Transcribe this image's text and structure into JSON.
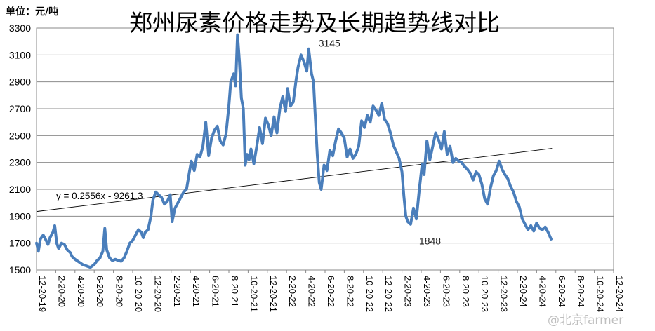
{
  "chart_data": {
    "type": "line",
    "title": "郑州尿素价格走势及长期趋势线对比",
    "unit_label": "单位：元/吨",
    "ylim": [
      1500,
      3300
    ],
    "yticks": [
      1500,
      1700,
      1900,
      2100,
      2300,
      2500,
      2700,
      2900,
      3100,
      3300
    ],
    "grid": true,
    "legend": "none",
    "x_tick_labels": [
      "12-20-19",
      "2-20-20",
      "4-20-20",
      "6-20-20",
      "8-20-20",
      "10-20-20",
      "12-20-20",
      "2-20-21",
      "4-20-21",
      "6-20-21",
      "8-20-21",
      "10-20-21",
      "12-20-21",
      "2-20-22",
      "4-20-22",
      "6-20-22",
      "8-20-22",
      "10-20-22",
      "12-20-22",
      "2-20-23",
      "4-20-23",
      "6-20-23",
      "8-20-23",
      "10-20-23",
      "12-20-23",
      "2-20-24",
      "4-20-24",
      "6-20-24",
      "8-20-24",
      "10-20-24",
      "12-20-24"
    ],
    "series": [
      {
        "color": "#4a7ebb",
        "points": [
          [
            0,
            1700
          ],
          [
            0.1,
            1640
          ],
          [
            0.2,
            1730
          ],
          [
            0.35,
            1760
          ],
          [
            0.5,
            1720
          ],
          [
            0.6,
            1690
          ],
          [
            0.7,
            1740
          ],
          [
            0.85,
            1780
          ],
          [
            0.95,
            1830
          ],
          [
            1.05,
            1700
          ],
          [
            1.15,
            1660
          ],
          [
            1.3,
            1700
          ],
          [
            1.45,
            1690
          ],
          [
            1.6,
            1650
          ],
          [
            1.75,
            1630
          ],
          [
            1.85,
            1600
          ],
          [
            2.0,
            1580
          ],
          [
            2.2,
            1560
          ],
          [
            2.4,
            1540
          ],
          [
            2.6,
            1530
          ],
          [
            2.8,
            1520
          ],
          [
            3.0,
            1540
          ],
          [
            3.15,
            1570
          ],
          [
            3.3,
            1590
          ],
          [
            3.45,
            1640
          ],
          [
            3.55,
            1810
          ],
          [
            3.65,
            1650
          ],
          [
            3.8,
            1590
          ],
          [
            3.95,
            1570
          ],
          [
            4.1,
            1580
          ],
          [
            4.25,
            1570
          ],
          [
            4.4,
            1565
          ],
          [
            4.55,
            1590
          ],
          [
            4.7,
            1640
          ],
          [
            4.85,
            1700
          ],
          [
            5.0,
            1720
          ],
          [
            5.15,
            1760
          ],
          [
            5.3,
            1800
          ],
          [
            5.45,
            1780
          ],
          [
            5.55,
            1740
          ],
          [
            5.65,
            1780
          ],
          [
            5.8,
            1800
          ],
          [
            5.95,
            1900
          ],
          [
            6.05,
            2020
          ],
          [
            6.2,
            2080
          ],
          [
            6.35,
            2060
          ],
          [
            6.5,
            2040
          ],
          [
            6.65,
            1990
          ],
          [
            6.8,
            2010
          ],
          [
            6.95,
            2060
          ],
          [
            7.05,
            1860
          ],
          [
            7.2,
            1960
          ],
          [
            7.35,
            2000
          ],
          [
            7.5,
            2040
          ],
          [
            7.65,
            2080
          ],
          [
            7.8,
            2100
          ],
          [
            7.95,
            2230
          ],
          [
            8.05,
            2310
          ],
          [
            8.2,
            2240
          ],
          [
            8.35,
            2360
          ],
          [
            8.5,
            2340
          ],
          [
            8.65,
            2420
          ],
          [
            8.8,
            2600
          ],
          [
            8.95,
            2350
          ],
          [
            9.1,
            2480
          ],
          [
            9.25,
            2540
          ],
          [
            9.4,
            2570
          ],
          [
            9.55,
            2460
          ],
          [
            9.7,
            2430
          ],
          [
            9.85,
            2510
          ],
          [
            10.0,
            2720
          ],
          [
            10.1,
            2900
          ],
          [
            10.25,
            2960
          ],
          [
            10.35,
            2870
          ],
          [
            10.45,
            3250
          ],
          [
            10.55,
            3050
          ],
          [
            10.65,
            2780
          ],
          [
            10.75,
            2700
          ],
          [
            10.85,
            2280
          ],
          [
            10.95,
            2360
          ],
          [
            11.05,
            2320
          ],
          [
            11.15,
            2400
          ],
          [
            11.3,
            2290
          ],
          [
            11.45,
            2420
          ],
          [
            11.6,
            2560
          ],
          [
            11.75,
            2440
          ],
          [
            11.9,
            2630
          ],
          [
            12.05,
            2580
          ],
          [
            12.2,
            2500
          ],
          [
            12.35,
            2640
          ],
          [
            12.5,
            2520
          ],
          [
            12.65,
            2700
          ],
          [
            12.8,
            2790
          ],
          [
            12.95,
            2680
          ],
          [
            13.05,
            2850
          ],
          [
            13.2,
            2720
          ],
          [
            13.35,
            2750
          ],
          [
            13.5,
            2920
          ],
          [
            13.6,
            3010
          ],
          [
            13.75,
            3100
          ],
          [
            13.9,
            3050
          ],
          [
            14.05,
            2980
          ],
          [
            14.15,
            3145
          ],
          [
            14.3,
            2960
          ],
          [
            14.4,
            2900
          ],
          [
            14.5,
            2620
          ],
          [
            14.6,
            2350
          ],
          [
            14.7,
            2150
          ],
          [
            14.8,
            2100
          ],
          [
            14.95,
            2280
          ],
          [
            15.1,
            2240
          ],
          [
            15.25,
            2390
          ],
          [
            15.4,
            2350
          ],
          [
            15.55,
            2460
          ],
          [
            15.7,
            2550
          ],
          [
            15.85,
            2520
          ],
          [
            16.0,
            2480
          ],
          [
            16.15,
            2340
          ],
          [
            16.3,
            2400
          ],
          [
            16.45,
            2330
          ],
          [
            16.6,
            2360
          ],
          [
            16.75,
            2420
          ],
          [
            16.9,
            2610
          ],
          [
            17.05,
            2560
          ],
          [
            17.2,
            2650
          ],
          [
            17.35,
            2600
          ],
          [
            17.5,
            2720
          ],
          [
            17.65,
            2690
          ],
          [
            17.8,
            2650
          ],
          [
            17.95,
            2740
          ],
          [
            18.1,
            2620
          ],
          [
            18.25,
            2590
          ],
          [
            18.4,
            2520
          ],
          [
            18.55,
            2430
          ],
          [
            18.7,
            2380
          ],
          [
            18.85,
            2330
          ],
          [
            19.0,
            2230
          ],
          [
            19.1,
            2050
          ],
          [
            19.2,
            1900
          ],
          [
            19.3,
            1860
          ],
          [
            19.45,
            1840
          ],
          [
            19.6,
            1960
          ],
          [
            19.75,
            1880
          ],
          [
            19.9,
            2100
          ],
          [
            20.05,
            2290
          ],
          [
            20.15,
            2210
          ],
          [
            20.3,
            2460
          ],
          [
            20.45,
            2320
          ],
          [
            20.6,
            2420
          ],
          [
            20.75,
            2520
          ],
          [
            20.9,
            2470
          ],
          [
            21.05,
            2400
          ],
          [
            21.2,
            2530
          ],
          [
            21.35,
            2360
          ],
          [
            21.5,
            2420
          ],
          [
            21.65,
            2300
          ],
          [
            21.8,
            2330
          ],
          [
            21.95,
            2310
          ],
          [
            22.1,
            2300
          ],
          [
            22.25,
            2270
          ],
          [
            22.4,
            2250
          ],
          [
            22.55,
            2220
          ],
          [
            22.7,
            2170
          ],
          [
            22.85,
            2230
          ],
          [
            23.0,
            2210
          ],
          [
            23.15,
            2140
          ],
          [
            23.3,
            2030
          ],
          [
            23.45,
            1990
          ],
          [
            23.6,
            2110
          ],
          [
            23.75,
            2200
          ],
          [
            23.9,
            2240
          ],
          [
            24.05,
            2310
          ],
          [
            24.2,
            2250
          ],
          [
            24.35,
            2210
          ],
          [
            24.5,
            2180
          ],
          [
            24.65,
            2120
          ],
          [
            24.8,
            2080
          ],
          [
            24.95,
            2010
          ],
          [
            25.1,
            1970
          ],
          [
            25.25,
            1880
          ],
          [
            25.4,
            1840
          ],
          [
            25.55,
            1800
          ],
          [
            25.7,
            1830
          ],
          [
            25.85,
            1790
          ],
          [
            26.0,
            1850
          ],
          [
            26.15,
            1810
          ],
          [
            26.3,
            1800
          ],
          [
            26.45,
            1820
          ],
          [
            26.6,
            1780
          ],
          [
            26.75,
            1730
          ]
        ]
      }
    ],
    "trendline": {
      "equation": "y = 0.2556x - 9261.3",
      "start": [
        0,
        1935
      ],
      "end": [
        26.8,
        2405
      ]
    },
    "annotations": [
      {
        "text": "3145",
        "x": 14.15,
        "y": 3145
      },
      {
        "text": "1848",
        "x": 19.45,
        "y": 1848
      }
    ]
  },
  "watermark": "@北京farmer"
}
